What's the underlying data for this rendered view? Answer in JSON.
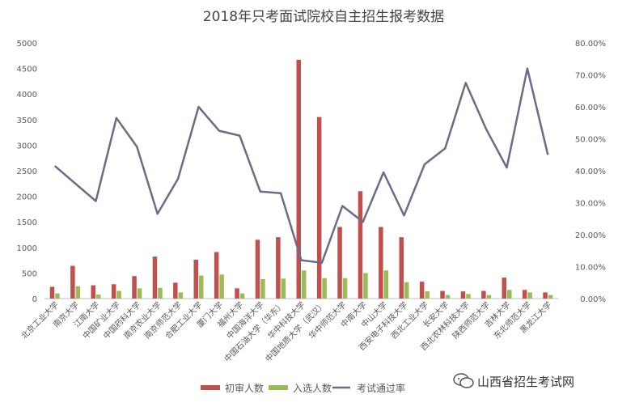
{
  "chart_data": {
    "type": "bar",
    "title": "2018年只考面试院校自主招生报考数据",
    "categories": [
      "北京工业大学",
      "南京大学",
      "江南大学",
      "中国矿业大学",
      "中国药科大学",
      "南京农业大学",
      "南京师范大学",
      "合肥工业大学",
      "厦门大学",
      "福州大学",
      "中国海洋大学",
      "中国石油大学（华东）",
      "华中科技大学",
      "中国地质大学（武汉）",
      "华中师范大学",
      "中南大学",
      "中山大学",
      "西安电子科技大学",
      "西北工业大学",
      "长安大学",
      "西北农林科技大学",
      "陕西师范大学",
      "吉林大学",
      "东北师范大学",
      "黑龙江大学"
    ],
    "series": [
      {
        "name": "初审人数",
        "type": "bar",
        "axis": "left",
        "color": "#c0504d",
        "values": [
          230,
          640,
          260,
          280,
          440,
          820,
          310,
          760,
          910,
          200,
          1150,
          1200,
          4670,
          3550,
          1400,
          2100,
          1400,
          1200,
          330,
          150,
          140,
          150,
          410,
          170,
          120
        ]
      },
      {
        "name": "入选人数",
        "type": "bar",
        "axis": "left",
        "color": "#9bbb59",
        "values": [
          100,
          240,
          80,
          150,
          200,
          210,
          120,
          450,
          470,
          100,
          380,
          390,
          550,
          400,
          400,
          500,
          550,
          320,
          140,
          70,
          90,
          70,
          170,
          120,
          70
        ]
      },
      {
        "name": "考试通过率",
        "type": "line",
        "axis": "right",
        "color": "#6b6b8a",
        "values": [
          0.415,
          0.36,
          0.305,
          0.565,
          0.475,
          0.265,
          0.375,
          0.6,
          0.525,
          0.51,
          0.335,
          0.33,
          0.12,
          0.112,
          0.29,
          0.24,
          0.395,
          0.26,
          0.42,
          0.47,
          0.675,
          0.53,
          0.41,
          0.72,
          0.45
        ]
      }
    ],
    "ylim_left": [
      0,
      5000
    ],
    "yticks_left": [
      "0",
      "500",
      "1000",
      "1500",
      "2000",
      "2500",
      "3000",
      "3500",
      "4000",
      "4500",
      "5000"
    ],
    "ylim_right": [
      0,
      0.8
    ],
    "yticks_right": [
      "0.00%",
      "10.00%",
      "20.00%",
      "30.00%",
      "40.00%",
      "50.00%",
      "60.00%",
      "70.00%",
      "80.00%"
    ],
    "grid": false,
    "legend_position": "bottom"
  },
  "watermark": {
    "text": "山西省招生考试网",
    "icon": "wechat-icon"
  }
}
